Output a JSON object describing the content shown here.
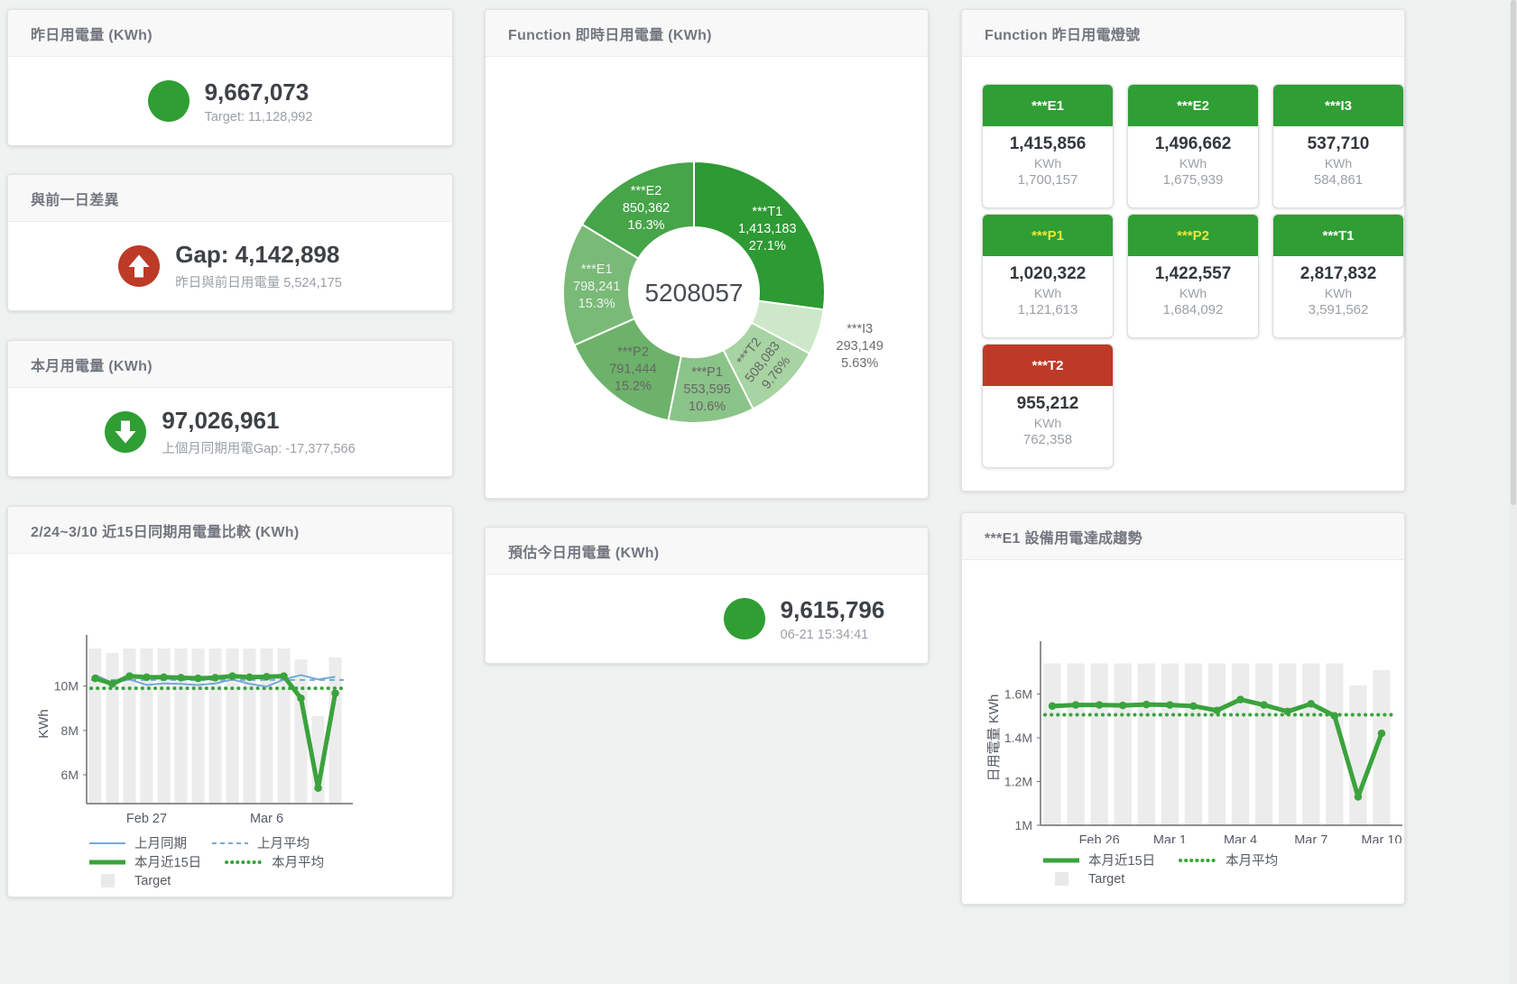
{
  "colors": {
    "green": "#2f9e33",
    "red": "#bd3a26",
    "line_green": "#3aa33c",
    "line_blue": "#74a9d8",
    "bar_fill": "#ececec",
    "tile_yellow_label": "#ece63b"
  },
  "stat_panels": {
    "yesterday": {
      "title": "昨日用電量 (KWh)",
      "value": "9,667,073",
      "subtext": "Target: 11,128,992",
      "indicator": "dot",
      "color": "#2f9e33"
    },
    "prev_day_gap": {
      "title": "與前一日差異",
      "value": "Gap: 4,142,898",
      "subtext": "昨日與前日用電量 5,524,175",
      "indicator": "arrow-up",
      "color": "#bd3a26"
    },
    "month": {
      "title": "本月用電量 (KWh)",
      "value": "97,026,961",
      "subtext": "上個月同期用電Gap: -17,377,566",
      "indicator": "arrow-down",
      "color": "#2f9e33"
    },
    "today_estimate": {
      "title": "預估今日用電量 (KWh)",
      "value": "9,615,796",
      "subtext": "06-21 15:34:41",
      "indicator": "dot",
      "color": "#2f9e33"
    }
  },
  "lights_panel": {
    "title": "Function 昨日用電燈號",
    "unit": "KWh",
    "tiles": [
      {
        "name": "***E1",
        "value": "1,415,856",
        "target": "1,700,157",
        "header_bg": "#2f9e33",
        "label_color": "#ffffff"
      },
      {
        "name": "***E2",
        "value": "1,496,662",
        "target": "1,675,939",
        "header_bg": "#2f9e33",
        "label_color": "#ffffff"
      },
      {
        "name": "***I3",
        "value": "537,710",
        "target": "584,861",
        "header_bg": "#2f9e33",
        "label_color": "#ffffff"
      },
      {
        "name": "***P1",
        "value": "1,020,322",
        "target": "1,121,613",
        "header_bg": "#2f9e33",
        "label_color": "#ece63b"
      },
      {
        "name": "***P2",
        "value": "1,422,557",
        "target": "1,684,092",
        "header_bg": "#2f9e33",
        "label_color": "#ece63b"
      },
      {
        "name": "***T1",
        "value": "2,817,832",
        "target": "3,591,562",
        "header_bg": "#2f9e33",
        "label_color": "#ffffff"
      },
      {
        "name": "***T2",
        "value": "955,212",
        "target": "762,358",
        "header_bg": "#bd3a26",
        "label_color": "#ffffff"
      }
    ]
  },
  "chart_data": [
    {
      "id": "realtime_donut",
      "type": "pie",
      "title": "Function 即時日用電量 (KWh)",
      "center_label": "5208057",
      "legend_position": "none",
      "slices": [
        {
          "name": "***T1",
          "value": 1413183,
          "value_label": "1,413,183",
          "pct": 27.1,
          "pct_label": "27.1%",
          "color": "#2d9a33",
          "label_color": "#ffffff"
        },
        {
          "name": "***I3",
          "value": 293149,
          "value_label": "293,149",
          "pct": 5.63,
          "pct_label": "5.63%",
          "color": "#cde8c9",
          "label_color": "#6b6b6b",
          "outside": true
        },
        {
          "name": "***T2",
          "value": 508083,
          "value_label": "508,083",
          "pct": 9.76,
          "pct_label": "9.76%",
          "color": "#a7d4a2",
          "label_color": "#666666",
          "rotate": -52
        },
        {
          "name": "***P1",
          "value": 553595,
          "value_label": "553,595",
          "pct": 10.6,
          "pct_label": "10.6%",
          "color": "#8bc488",
          "label_color": "#666666"
        },
        {
          "name": "***P2",
          "value": 791444,
          "value_label": "791,444",
          "pct": 15.2,
          "pct_label": "15.2%",
          "color": "#6db26a",
          "label_color": "#666666"
        },
        {
          "name": "***E1",
          "value": 798241,
          "value_label": "798,241",
          "pct": 15.3,
          "pct_label": "15.3%",
          "color": "#79ba77",
          "label_color": "#eef2ee"
        },
        {
          "name": "***E2",
          "value": 850362,
          "value_label": "850,362",
          "pct": 16.3,
          "pct_label": "16.3%",
          "color": "#46a449",
          "label_color": "#ffffff"
        }
      ]
    },
    {
      "id": "compare_15d",
      "type": "line+bar",
      "title": "2/24~3/10 近15日同期用電量比較 (KWh)",
      "ylabel": "KWh",
      "ylim": [
        4.7,
        11.9
      ],
      "yticks": [
        {
          "label": "6M",
          "value": 6
        },
        {
          "label": "8M",
          "value": 8
        },
        {
          "label": "10M",
          "value": 10
        }
      ],
      "n": 15,
      "xticks": [
        {
          "label": "Feb 27",
          "index": 3
        },
        {
          "label": "Mar 6",
          "index": 10
        }
      ],
      "bars": {
        "name": "Target",
        "color": "#ececec",
        "values": [
          11.7,
          11.5,
          11.7,
          11.7,
          11.7,
          11.7,
          11.7,
          11.7,
          11.7,
          11.7,
          11.7,
          11.7,
          11.2,
          8.65,
          11.3
        ]
      },
      "series": [
        {
          "name": "上月平均",
          "flat": 10.28,
          "color": "#74a9d8",
          "width": 2,
          "dash": "6,5"
        },
        {
          "name": "本月平均",
          "flat": 9.9,
          "color": "#3aa33c",
          "width": 4,
          "dash": "0.1,7",
          "cap": "round"
        },
        {
          "name": "上月同期",
          "color": "#74a9d8",
          "width": 2,
          "values": [
            10.5,
            10.15,
            10.3,
            10.05,
            10.12,
            10.1,
            10.05,
            10.12,
            10.3,
            10.1,
            9.98,
            10.3,
            10.5,
            10.3,
            10.42
          ]
        },
        {
          "name": "本月近15日",
          "color": "#3aa33c",
          "width": 5,
          "markers": true,
          "values": [
            10.35,
            10.1,
            10.45,
            10.4,
            10.4,
            10.38,
            10.35,
            10.38,
            10.45,
            10.4,
            10.42,
            10.45,
            9.45,
            5.4,
            9.68
          ]
        }
      ],
      "legend": [
        [
          {
            "label": "上月同期",
            "type": "line",
            "color": "#74a9d8",
            "width": 2
          },
          {
            "label": "上月平均",
            "type": "line",
            "color": "#74a9d8",
            "width": 2,
            "dash": "5,4"
          }
        ],
        [
          {
            "label": "本月近15日",
            "type": "line",
            "color": "#3aa33c",
            "width": 5
          },
          {
            "label": "本月平均",
            "type": "line",
            "color": "#3aa33c",
            "width": 4,
            "dash": "0.1,6",
            "cap": "round"
          }
        ],
        [
          {
            "label": "Target",
            "type": "box",
            "color": "#e9e9e9"
          }
        ]
      ]
    },
    {
      "id": "e1_trend",
      "type": "line+bar",
      "title": "***E1 設備用電達成趨勢",
      "ylabel": "日用電量 KWh",
      "ylim": [
        1.0,
        1.8
      ],
      "yticks": [
        {
          "label": "1M",
          "value": 1
        },
        {
          "label": "1.2M",
          "value": 1.2
        },
        {
          "label": "1.4M",
          "value": 1.4
        },
        {
          "label": "1.6M",
          "value": 1.6
        }
      ],
      "n": 15,
      "xticks": [
        {
          "label": "Feb 26",
          "index": 2
        },
        {
          "label": "Mar 1",
          "index": 5
        },
        {
          "label": "Mar 4",
          "index": 8
        },
        {
          "label": "Mar 7",
          "index": 11
        },
        {
          "label": "Mar 10",
          "index": 14
        }
      ],
      "bars": {
        "name": "Target",
        "color": "#ececec",
        "values": [
          1.74,
          1.74,
          1.74,
          1.74,
          1.74,
          1.74,
          1.74,
          1.74,
          1.74,
          1.74,
          1.74,
          1.74,
          1.74,
          1.64,
          1.71
        ]
      },
      "series": [
        {
          "name": "本月平均",
          "flat": 1.505,
          "color": "#3aa33c",
          "width": 4,
          "dash": "0.1,7",
          "cap": "round"
        },
        {
          "name": "本月近15日",
          "color": "#3aa33c",
          "width": 5,
          "markers": true,
          "values": [
            1.545,
            1.55,
            1.55,
            1.548,
            1.552,
            1.55,
            1.545,
            1.525,
            1.575,
            1.55,
            1.52,
            1.555,
            1.5,
            1.13,
            1.42
          ]
        }
      ],
      "legend": [
        [
          {
            "label": "本月近15日",
            "type": "line",
            "color": "#3aa33c",
            "width": 5
          },
          {
            "label": "本月平均",
            "type": "line",
            "color": "#3aa33c",
            "width": 4,
            "dash": "0.1,6",
            "cap": "round"
          }
        ],
        [
          {
            "label": "Target",
            "type": "box",
            "color": "#e9e9e9"
          }
        ]
      ]
    }
  ]
}
